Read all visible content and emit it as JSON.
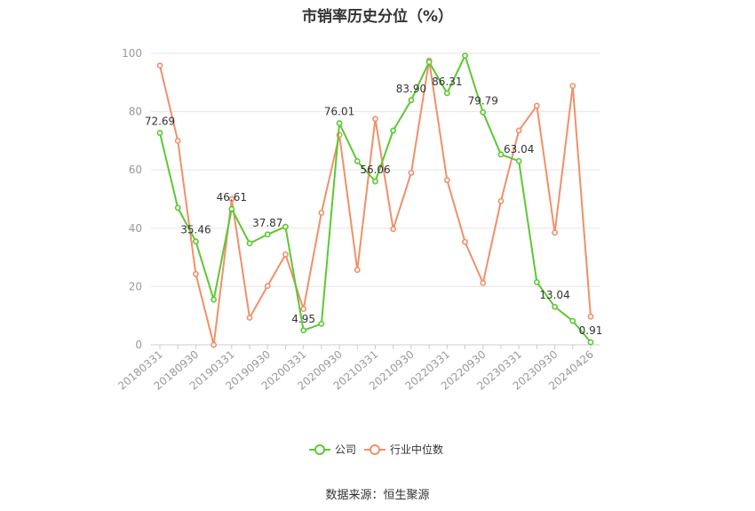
{
  "source": "数据来源：恒生聚源",
  "chart_data": {
    "type": "line",
    "title": "市销率历史分位（%）",
    "xlabel": "",
    "ylabel": "",
    "ylim": [
      0,
      100
    ],
    "yticks": [
      0,
      20,
      40,
      60,
      80,
      100
    ],
    "grid": true,
    "legend_position": "bottom",
    "tick_labels": [
      "20180331",
      "20180930",
      "20190331",
      "20190930",
      "20200331",
      "20200930",
      "20210331",
      "20210930",
      "20220331",
      "20220930",
      "20230331",
      "20230930",
      "20240426"
    ],
    "x": [
      "20180331",
      "20180630",
      "20180930",
      "20181231",
      "20190331",
      "20190630",
      "20190930",
      "20191231",
      "20200331",
      "20200630",
      "20200930",
      "20201231",
      "20210331",
      "20210630",
      "20210930",
      "20211231",
      "20220331",
      "20220630",
      "20220930",
      "20221231",
      "20230331",
      "20230630",
      "20230930",
      "20231231",
      "20240426"
    ],
    "series": [
      {
        "name": "公司",
        "color": "#5cc832",
        "values": [
          72.69,
          47.0,
          35.46,
          15.5,
          46.61,
          34.8,
          37.87,
          40.5,
          4.95,
          7.2,
          76.01,
          63.0,
          56.06,
          73.5,
          83.9,
          97.0,
          86.31,
          99.2,
          79.79,
          65.3,
          63.04,
          21.5,
          13.04,
          8.2,
          0.91
        ],
        "labels": {
          "0": "72.69",
          "2": "35.46",
          "4": "46.61",
          "6": "37.87",
          "8": "4.95",
          "10": "76.01",
          "12": "56.06",
          "14": "83.90",
          "16": "86.31",
          "18": "79.79",
          "20": "63.04",
          "22": "13.04",
          "24": "0.91"
        }
      },
      {
        "name": "行业中位数",
        "color": "#f0906a",
        "values": [
          95.8,
          70.0,
          24.3,
          0.0,
          50.0,
          9.3,
          20.2,
          31.0,
          12.3,
          45.3,
          72.0,
          25.7,
          77.5,
          39.7,
          59.0,
          97.5,
          56.5,
          35.3,
          21.2,
          49.3,
          73.5,
          82.0,
          38.5,
          88.8,
          9.7
        ]
      }
    ]
  }
}
